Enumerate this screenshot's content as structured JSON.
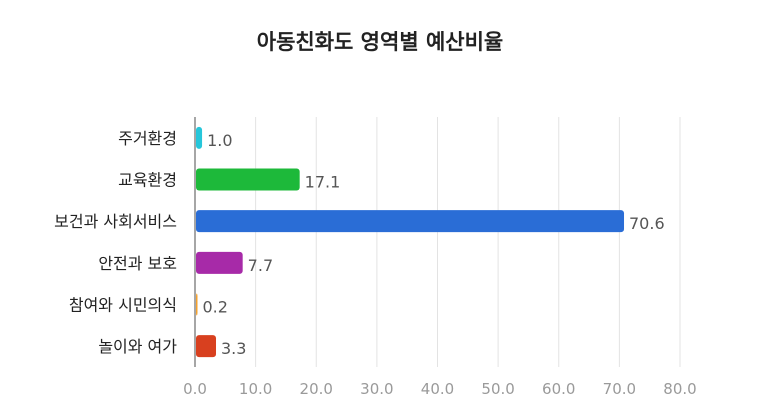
{
  "chart_data": {
    "type": "bar",
    "orientation": "horizontal",
    "title": "아동친화도 영역별 예산비율",
    "xlabel": "",
    "ylabel": "",
    "categories": [
      "주거환경",
      "교육환경",
      "보건과 사회서비스",
      "안전과 보호",
      "참여와 시민의식",
      "놀이와 여가"
    ],
    "values": [
      1.0,
      17.1,
      70.6,
      7.7,
      0.2,
      3.3
    ],
    "value_labels": [
      "1.0",
      "17.1",
      "70.6",
      "7.7",
      "0.2",
      "3.3"
    ],
    "colors": [
      "#26c6da",
      "#1db93a",
      "#2a6dd6",
      "#a72aa8",
      "#f4a12c",
      "#d8401f"
    ],
    "xlim": [
      0,
      80
    ],
    "xticks": [
      0,
      10,
      20,
      30,
      40,
      50,
      60,
      70,
      80
    ],
    "xtick_labels": [
      "0.0",
      "10.0",
      "20.0",
      "30.0",
      "40.0",
      "50.0",
      "60.0",
      "70.0",
      "80.0"
    ],
    "grid": "vertical",
    "legend": "none"
  }
}
